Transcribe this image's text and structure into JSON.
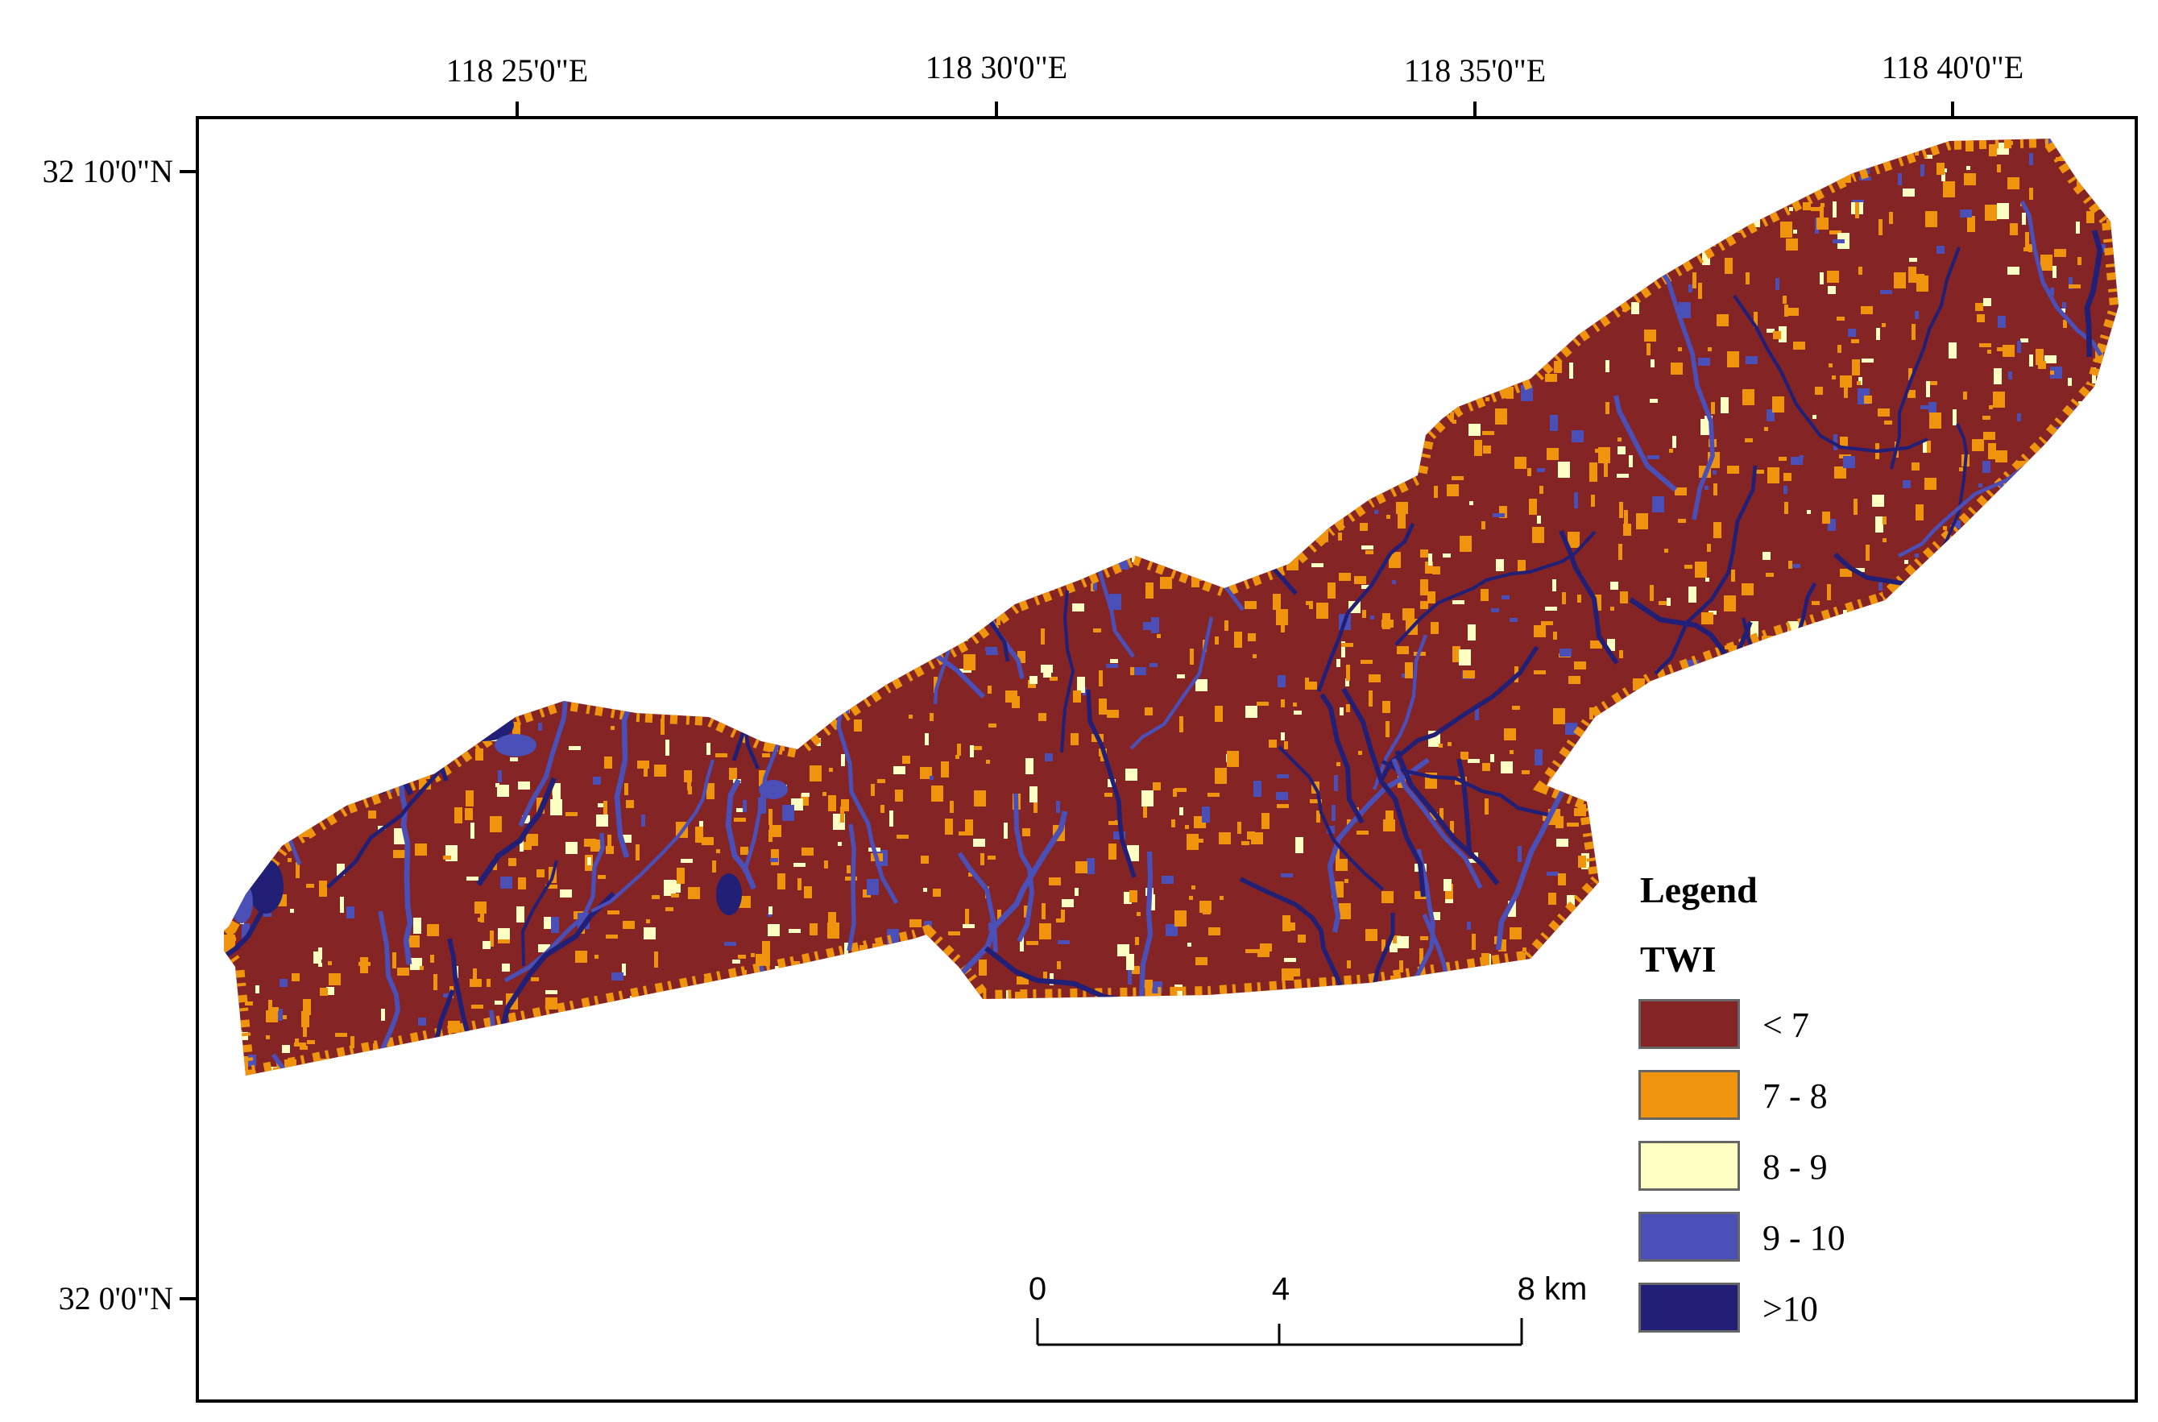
{
  "map": {
    "longitude_labels": [
      "118  25'0\"E",
      "118  30'0\"E",
      "118  35'0\"E",
      "118  40'0\"E"
    ],
    "latitude_labels": [
      "32  10'0\"N",
      "32  0'0\"N"
    ]
  },
  "legend": {
    "title": "Legend",
    "layer": "TWI",
    "classes": [
      {
        "label": "< 7",
        "color": "#842425"
      },
      {
        "label": "7 - 8",
        "color": "#F0940E"
      },
      {
        "label": "8 - 9",
        "color": "#FFFFC3"
      },
      {
        "label": "9 - 10",
        "color": "#4A50B8"
      },
      {
        "label": ">10",
        "color": "#222076"
      }
    ]
  },
  "scale_bar": {
    "labels": [
      "0",
      "4",
      "8 km"
    ]
  },
  "colors": {
    "frame": "#000000",
    "base": "#842425",
    "orange": "#F0940E",
    "pale": "#FFFFC3",
    "blue": "#4A50B8",
    "navy": "#222076"
  }
}
